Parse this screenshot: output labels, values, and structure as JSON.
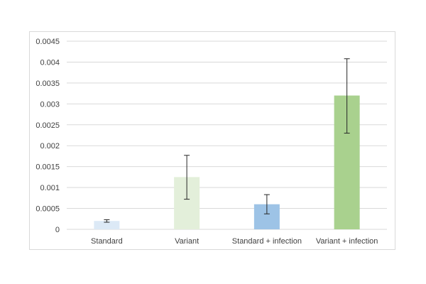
{
  "chart_data": {
    "type": "bar",
    "title": "",
    "xlabel": "",
    "ylabel": "",
    "categories": [
      "Standard",
      "Variant",
      "Standard + infection",
      "Variant + infection"
    ],
    "values": [
      0.0002,
      0.00125,
      0.0006,
      0.0032
    ],
    "error_low": [
      0.00017,
      0.00072,
      0.00037,
      0.0023
    ],
    "error_high": [
      0.00023,
      0.00177,
      0.00083,
      0.00408
    ],
    "bar_colors": [
      "#dce9f6",
      "#e3efda",
      "#9dc3e6",
      "#a9d18e"
    ],
    "ylim": [
      0,
      0.0045
    ],
    "yticks": [
      "0",
      "0.0005",
      "0.001",
      "0.0015",
      "0.002",
      "0.0025",
      "0.003",
      "0.0035",
      "0.004",
      "0.0045"
    ],
    "grid": true,
    "legend": "none"
  }
}
